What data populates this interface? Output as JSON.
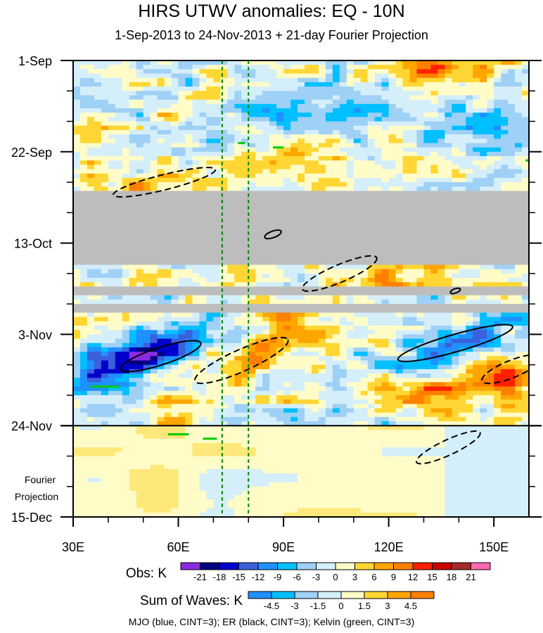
{
  "chart_data": {
    "type": "heatmap",
    "title": "HIRS UTWV anomalies: EQ - 10N",
    "subtitle": "1-Sep-2013 to 24-Nov-2013 + 21-day Fourier Projection",
    "x_ticks": [
      {
        "label": "30E",
        "value": 30
      },
      {
        "label": "60E",
        "value": 60
      },
      {
        "label": "90E",
        "value": 90
      },
      {
        "label": "120E",
        "value": 120
      },
      {
        "label": "150E",
        "value": 150
      }
    ],
    "xlim": [
      30,
      160
    ],
    "y_ticks": [
      {
        "label": "1-Sep",
        "value": 0
      },
      {
        "label": "22-Sep",
        "value": 21
      },
      {
        "label": "13-Oct",
        "value": 42
      },
      {
        "label": "3-Nov",
        "value": 63
      },
      {
        "label": "24-Nov",
        "value": 84
      },
      {
        "label": "15-Dec",
        "value": 105
      }
    ],
    "ylim_days": [
      0,
      105
    ],
    "observation_end_day": 84,
    "projection_label_line1": "Fourier",
    "projection_label_line2": "Projection",
    "reference_lines_lon": [
      72.5,
      80
    ],
    "missing_data_bands_days": [
      [
        30,
        47
      ],
      [
        52,
        54
      ],
      [
        56,
        58
      ]
    ],
    "obs_colorbar": {
      "title": "Obs: K",
      "levels": [
        -21,
        -18,
        -15,
        -12,
        -9,
        -6,
        -3,
        0,
        3,
        6,
        9,
        12,
        15,
        18,
        21
      ],
      "colors": [
        "#8a2be2",
        "#000080",
        "#0000cd",
        "#3a60dc",
        "#1e90ff",
        "#00bfff",
        "#9fd0f5",
        "#d5effa",
        "#fffcc8",
        "#ffd633",
        "#ffa500",
        "#ff7f00",
        "#ff2000",
        "#c80000",
        "#a52a2a",
        "#ff69b4"
      ]
    },
    "waves_colorbar": {
      "title": "Sum of Waves: K",
      "levels": [
        -4.5,
        -3,
        -1.5,
        0,
        1.5,
        3,
        4.5
      ],
      "colors": [
        "#1e90ff",
        "#00bfff",
        "#9fd0f5",
        "#d5effa",
        "#fffcc8",
        "#ffd633",
        "#ffa500",
        "#ff7f00"
      ]
    },
    "contours": {
      "er_positive_solid": [
        {
          "lon": 55,
          "day": 68,
          "len": 24,
          "wid": 4,
          "angle": -18
        },
        {
          "lon": 139,
          "day": 65,
          "len": 34,
          "wid": 4,
          "angle": -16
        },
        {
          "lon": 87,
          "day": 40,
          "len": 5,
          "wid": 1.5,
          "angle": -20
        },
        {
          "lon": 139,
          "day": 53,
          "len": 3,
          "wid": 1,
          "angle": -20
        }
      ],
      "er_negative_dashed": [
        {
          "lon": 56,
          "day": 28,
          "len": 30,
          "wid": 3.5,
          "angle": -14
        },
        {
          "lon": 106,
          "day": 49,
          "len": 23,
          "wid": 4,
          "angle": -23
        },
        {
          "lon": 78,
          "day": 69,
          "len": 29,
          "wid": 5,
          "angle": -24
        },
        {
          "lon": 155,
          "day": 71,
          "len": 18,
          "wid": 4,
          "angle": -22
        },
        {
          "lon": 137,
          "day": 89,
          "len": 20,
          "wid": 3.5,
          "angle": -25
        }
      ],
      "kelvin_green": [
        {
          "lon1": 35,
          "lon2": 43,
          "day": 75
        },
        {
          "lon1": 77,
          "lon2": 79,
          "day": 19
        },
        {
          "lon1": 87,
          "lon2": 90,
          "day": 20
        },
        {
          "lon1": 57,
          "lon2": 63,
          "day": 86
        },
        {
          "lon1": 67,
          "lon2": 71,
          "day": 87
        },
        {
          "lon1": 159,
          "lon2": 160,
          "day": 23
        }
      ]
    },
    "footer": "MJO (blue, CINT=3); ER (black, CINT=3); Kelvin (green, CINT=3)"
  }
}
